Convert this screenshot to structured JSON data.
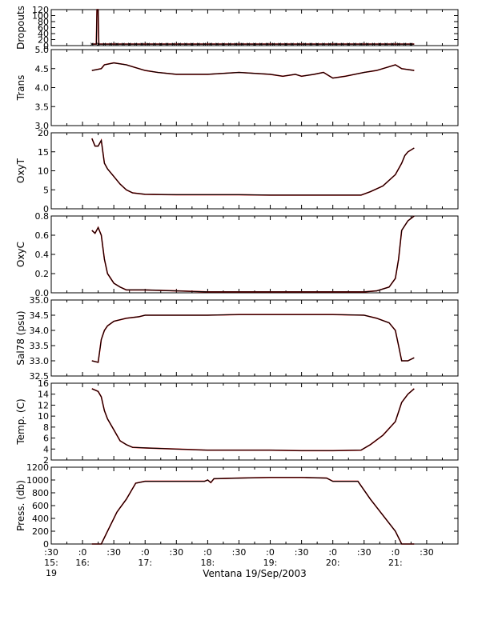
{
  "chart_data": {
    "type": "line",
    "x_tick_labels": [
      ":30",
      ":0",
      ":30",
      ":0",
      ":30",
      ":0",
      ":30",
      ":0",
      ":30",
      ":0",
      ":30",
      ":0",
      ":30"
    ],
    "x_hour_labels": [
      {
        "time": 15.5,
        "text": "15:"
      },
      {
        "time": 16.0,
        "text": "16:"
      },
      {
        "time": 17.0,
        "text": "17:"
      },
      {
        "time": 18.0,
        "text": "18:"
      },
      {
        "time": 19.0,
        "text": "19:"
      },
      {
        "time": 20.0,
        "text": "20:"
      },
      {
        "time": 21.0,
        "text": "21:"
      }
    ],
    "x_extra_label": {
      "time": 15.5,
      "text": "19"
    },
    "xlabel": "Ventana 19/Sep/2003",
    "xlim": [
      15.5,
      22.0
    ],
    "series_colors": {
      "raw": "#ff0000",
      "smoothed": "#000000"
    },
    "panels": [
      {
        "ylabel": "Dropouts",
        "ylim": [
          0,
          120
        ],
        "ticks": [
          0,
          20,
          40,
          60,
          80,
          100,
          120
        ],
        "tick_labels": [
          "0",
          "20",
          "40",
          "60",
          "80",
          "100",
          "120"
        ],
        "x": [
          16.15,
          16.22,
          16.23,
          16.25,
          16.26,
          16.3,
          16.5,
          17.0,
          18.0,
          19.0,
          20.0,
          21.0,
          21.3
        ],
        "values": [
          5,
          5,
          120,
          120,
          5,
          5,
          5,
          5,
          5,
          5,
          5,
          5,
          5
        ]
      },
      {
        "ylabel": "Trans",
        "ylim": [
          3.0,
          5.0
        ],
        "ticks": [
          3.0,
          3.5,
          4.0,
          4.5,
          5.0
        ],
        "tick_labels": [
          "3.0",
          "3.5",
          "4.0",
          "4.5",
          "5.0"
        ],
        "x": [
          16.15,
          16.3,
          16.35,
          16.5,
          16.7,
          16.8,
          17.0,
          17.2,
          17.5,
          18.0,
          18.5,
          19.0,
          19.2,
          19.4,
          19.5,
          19.7,
          19.85,
          19.95,
          20.0,
          20.2,
          20.5,
          20.7,
          20.9,
          21.0,
          21.1,
          21.3
        ],
        "values": [
          4.45,
          4.5,
          4.6,
          4.65,
          4.6,
          4.55,
          4.45,
          4.4,
          4.35,
          4.35,
          4.4,
          4.35,
          4.3,
          4.35,
          4.3,
          4.35,
          4.4,
          4.3,
          4.25,
          4.3,
          4.4,
          4.45,
          4.55,
          4.6,
          4.5,
          4.45
        ]
      },
      {
        "ylabel": "OxyT",
        "ylim": [
          0,
          20
        ],
        "ticks": [
          0,
          5,
          10,
          15,
          20
        ],
        "tick_labels": [
          "0",
          "5",
          "10",
          "15",
          "20"
        ],
        "x": [
          16.15,
          16.2,
          16.25,
          16.3,
          16.35,
          16.4,
          16.5,
          16.6,
          16.7,
          16.8,
          17.0,
          17.5,
          18.0,
          18.5,
          19.0,
          19.5,
          20.0,
          20.45,
          20.6,
          20.8,
          21.0,
          21.1,
          21.15,
          21.2,
          21.3
        ],
        "values": [
          18.5,
          16.5,
          16.5,
          18.0,
          12.0,
          10.5,
          8.5,
          6.5,
          5.0,
          4.2,
          3.8,
          3.7,
          3.7,
          3.7,
          3.6,
          3.6,
          3.6,
          3.6,
          4.5,
          6.0,
          9.0,
          12.0,
          14.0,
          15.0,
          16.0
        ]
      },
      {
        "ylabel": "OxyC",
        "ylim": [
          0,
          0.8
        ],
        "ticks": [
          0.0,
          0.2,
          0.4,
          0.6,
          0.8
        ],
        "tick_labels": [
          "0.0",
          "0.2",
          "0.4",
          "0.6",
          "0.8"
        ],
        "x": [
          16.15,
          16.2,
          16.25,
          16.3,
          16.35,
          16.4,
          16.5,
          16.6,
          16.7,
          17.0,
          17.5,
          18.0,
          18.5,
          19.0,
          19.5,
          20.0,
          20.5,
          20.7,
          20.9,
          21.0,
          21.05,
          21.1,
          21.2,
          21.3
        ],
        "values": [
          0.65,
          0.62,
          0.68,
          0.6,
          0.35,
          0.2,
          0.1,
          0.06,
          0.03,
          0.03,
          0.02,
          0.01,
          0.01,
          0.01,
          0.01,
          0.01,
          0.01,
          0.02,
          0.06,
          0.15,
          0.35,
          0.65,
          0.75,
          0.8
        ]
      },
      {
        "ylabel": "Sal78 (psu)",
        "ylim": [
          32.5,
          35.0
        ],
        "ticks": [
          32.5,
          33.0,
          33.5,
          34.0,
          34.5,
          35.0
        ],
        "tick_labels": [
          "32.5",
          "33.0",
          "33.5",
          "34.0",
          "34.5",
          "35.0"
        ],
        "x": [
          16.15,
          16.25,
          16.3,
          16.35,
          16.4,
          16.5,
          16.7,
          16.9,
          17.0,
          17.5,
          18.0,
          18.5,
          19.0,
          19.5,
          20.0,
          20.5,
          20.7,
          20.9,
          21.0,
          21.05,
          21.1,
          21.2,
          21.3
        ],
        "values": [
          33.0,
          32.95,
          33.7,
          34.0,
          34.15,
          34.3,
          34.4,
          34.45,
          34.5,
          34.5,
          34.5,
          34.52,
          34.52,
          34.52,
          34.52,
          34.5,
          34.4,
          34.25,
          34.0,
          33.5,
          33.0,
          33.0,
          33.1
        ]
      },
      {
        "ylabel": "Temp. (C)",
        "ylim": [
          2,
          16
        ],
        "ticks": [
          2,
          4,
          6,
          8,
          10,
          12,
          14,
          16
        ],
        "tick_labels": [
          "2",
          "4",
          "6",
          "8",
          "10",
          "12",
          "14",
          "16"
        ],
        "x": [
          16.15,
          16.25,
          16.3,
          16.35,
          16.4,
          16.5,
          16.6,
          16.7,
          16.8,
          17.0,
          17.5,
          18.0,
          18.5,
          19.0,
          19.5,
          20.0,
          20.45,
          20.6,
          20.8,
          21.0,
          21.1,
          21.2,
          21.3
        ],
        "values": [
          15.0,
          14.5,
          13.5,
          11.0,
          9.5,
          7.5,
          5.5,
          4.8,
          4.3,
          4.2,
          4.0,
          3.8,
          3.8,
          3.8,
          3.7,
          3.7,
          3.8,
          4.8,
          6.5,
          9.0,
          12.5,
          14.0,
          15.0
        ]
      },
      {
        "ylabel": "Press. (db)",
        "ylim": [
          0,
          1200
        ],
        "ticks": [
          0,
          200,
          400,
          600,
          800,
          1000,
          1200
        ],
        "tick_labels": [
          "0",
          "200",
          "400",
          "600",
          "800",
          "1000",
          "1200"
        ],
        "x": [
          16.15,
          16.3,
          16.4,
          16.55,
          16.7,
          16.85,
          17.0,
          17.5,
          17.95,
          18.0,
          18.05,
          18.1,
          18.5,
          19.0,
          19.5,
          19.9,
          20.0,
          20.4,
          20.6,
          20.8,
          21.0,
          21.1,
          21.3
        ],
        "values": [
          0,
          0,
          200,
          500,
          700,
          950,
          980,
          980,
          980,
          1000,
          960,
          1020,
          1030,
          1040,
          1040,
          1030,
          980,
          980,
          700,
          450,
          200,
          0,
          0
        ]
      }
    ]
  }
}
